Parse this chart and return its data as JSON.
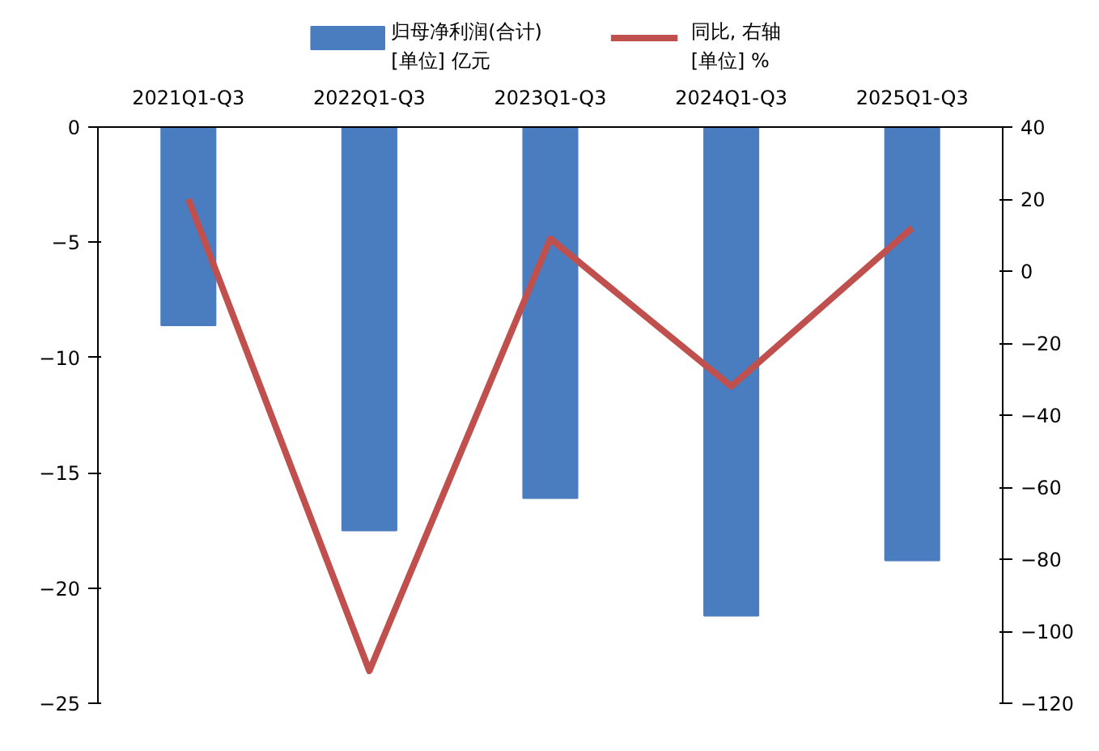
{
  "chart_data": {
    "type": "bar",
    "categories": [
      "2021Q1-Q3",
      "2022Q1-Q3",
      "2023Q1-Q3",
      "2024Q1-Q3",
      "2025Q1-Q3"
    ],
    "series": [
      {
        "name": "归母净利润(合计)\n[单位] 亿元",
        "color": "#4a7cc0",
        "values": [
          -8.6,
          -17.5,
          -16.1,
          -21.2,
          -18.8
        ]
      },
      {
        "name": "同比, 右轴\n[单位] %",
        "color": "#c0504d",
        "type": "line",
        "axis": "y2",
        "values": [
          20,
          -111,
          9,
          -32,
          12
        ]
      }
    ],
    "ylim": [
      -25,
      0
    ],
    "yticks": [
      {
        "value": 0,
        "label": "0"
      },
      {
        "value": -5,
        "label": "−5"
      },
      {
        "value": -10,
        "label": "−10"
      },
      {
        "value": -15,
        "label": "−15"
      },
      {
        "value": -20,
        "label": "−20"
      },
      {
        "value": -25,
        "label": "−25"
      }
    ],
    "y2lim": [
      -120,
      40
    ],
    "y2ticks": [
      40,
      20,
      0,
      {
        "value": -20,
        "label": "−20"
      },
      {
        "value": -40,
        "label": "−40"
      },
      {
        "value": -60,
        "label": "−60"
      },
      {
        "value": -80,
        "label": "−80"
      },
      {
        "value": -100,
        "label": "−100"
      },
      {
        "value": -120,
        "label": "−120"
      }
    ],
    "legend": "top",
    "grid": false,
    "marker": "none"
  }
}
